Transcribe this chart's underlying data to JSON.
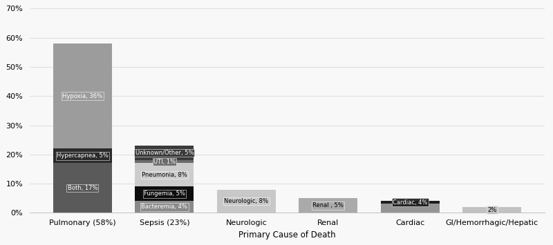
{
  "categories": [
    "Pulmonary (58%)",
    "Sepsis (23%)",
    "Neurologic",
    "Renal",
    "Cardiac",
    "GI/Hemorrhagic/Hepatic"
  ],
  "xlabel": "Primary Cause of Death",
  "ylim": [
    0,
    70
  ],
  "yticks": [
    0,
    10,
    20,
    30,
    40,
    50,
    60,
    70
  ],
  "ytick_labels": [
    "0%",
    "10%",
    "20%",
    "30%",
    "40%",
    "50%",
    "60%",
    "70%"
  ],
  "background_color": "#f8f8f8",
  "bar_width": 0.72,
  "stacks": [
    {
      "category_index": 0,
      "segments": [
        {
          "label": "Both, 17%",
          "value": 17,
          "color": "#5a5a5a",
          "text_color": "white"
        },
        {
          "label": "Hypercapnea, 5%",
          "value": 5,
          "color": "#2a2a2a",
          "text_color": "white"
        },
        {
          "label": "Hypoxia, 36%",
          "value": 36,
          "color": "#9c9c9c",
          "text_color": "white"
        }
      ]
    },
    {
      "category_index": 1,
      "segments": [
        {
          "label": "Bacteremia, 4%",
          "value": 4,
          "color": "#8a8a8a",
          "text_color": "white"
        },
        {
          "label": "Fungemia, 5%",
          "value": 5,
          "color": "#0d0d0d",
          "text_color": "white"
        },
        {
          "label": "Pneumonia, 8%",
          "value": 8,
          "color": "#cccccc",
          "text_color": "black"
        },
        {
          "label": "UTI, 1%",
          "value": 1,
          "color": "#6a6a6a",
          "text_color": "white"
        },
        {
          "label": "Unknown/Other, 5%",
          "value": 5,
          "color": "#3a3a3a",
          "text_color": "white"
        }
      ]
    },
    {
      "category_index": 2,
      "segments": [
        {
          "label": "Neurologic, 8%",
          "value": 8,
          "color": "#c8c8c8",
          "text_color": "black"
        }
      ]
    },
    {
      "category_index": 3,
      "segments": [
        {
          "label": "Renal , 5%",
          "value": 5,
          "color": "#aaaaaa",
          "text_color": "black"
        }
      ]
    },
    {
      "category_index": 4,
      "segments": [
        {
          "label": "",
          "value": 3.2,
          "color": "#959595",
          "text_color": "black"
        },
        {
          "label": "Cardiac, 4%",
          "value": 0.8,
          "color": "#1e1e1e",
          "text_color": "white"
        }
      ]
    },
    {
      "category_index": 5,
      "segments": [
        {
          "label": "2%",
          "value": 2,
          "color": "#c2c2c2",
          "text_color": "black"
        }
      ]
    }
  ],
  "annotation_fontsize": 6.0,
  "xlabel_fontsize": 8.5,
  "tick_fontsize": 8.0,
  "grid_color": "#e0e0e0",
  "spine_color": "#aaaaaa"
}
